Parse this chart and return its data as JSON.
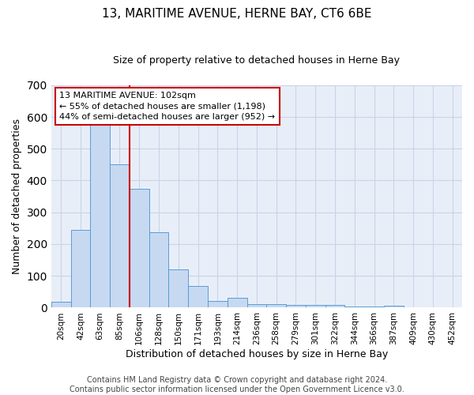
{
  "title": "13, MARITIME AVENUE, HERNE BAY, CT6 6BE",
  "subtitle": "Size of property relative to detached houses in Herne Bay",
  "xlabel": "Distribution of detached houses by size in Herne Bay",
  "ylabel": "Number of detached properties",
  "categories": [
    "20sqm",
    "42sqm",
    "63sqm",
    "85sqm",
    "106sqm",
    "128sqm",
    "150sqm",
    "171sqm",
    "193sqm",
    "214sqm",
    "236sqm",
    "258sqm",
    "279sqm",
    "301sqm",
    "322sqm",
    "344sqm",
    "366sqm",
    "387sqm",
    "409sqm",
    "430sqm",
    "452sqm"
  ],
  "values": [
    18,
    245,
    580,
    450,
    375,
    237,
    120,
    68,
    20,
    30,
    12,
    10,
    8,
    8,
    8,
    3,
    3,
    5,
    2,
    1,
    0
  ],
  "bar_color": "#c6d9f1",
  "bar_edge_color": "#5b9bd5",
  "grid_color": "#c8d4e8",
  "background_color": "#e8eef8",
  "redline_color": "#cc0000",
  "annotation_line1": "13 MARITIME AVENUE: 102sqm",
  "annotation_line2": "← 55% of detached houses are smaller (1,198)",
  "annotation_line3": "44% of semi-detached houses are larger (952) →",
  "annotation_box_facecolor": "#ffffff",
  "annotation_box_edgecolor": "#cc0000",
  "ylim": [
    0,
    700
  ],
  "yticks": [
    0,
    100,
    200,
    300,
    400,
    500,
    600,
    700
  ],
  "footer_line1": "Contains HM Land Registry data © Crown copyright and database right 2024.",
  "footer_line2": "Contains public sector information licensed under the Open Government Licence v3.0.",
  "title_fontsize": 11,
  "subtitle_fontsize": 9,
  "ylabel_fontsize": 9,
  "xlabel_fontsize": 9,
  "tick_fontsize": 7.5,
  "annotation_fontsize": 8,
  "footer_fontsize": 7
}
